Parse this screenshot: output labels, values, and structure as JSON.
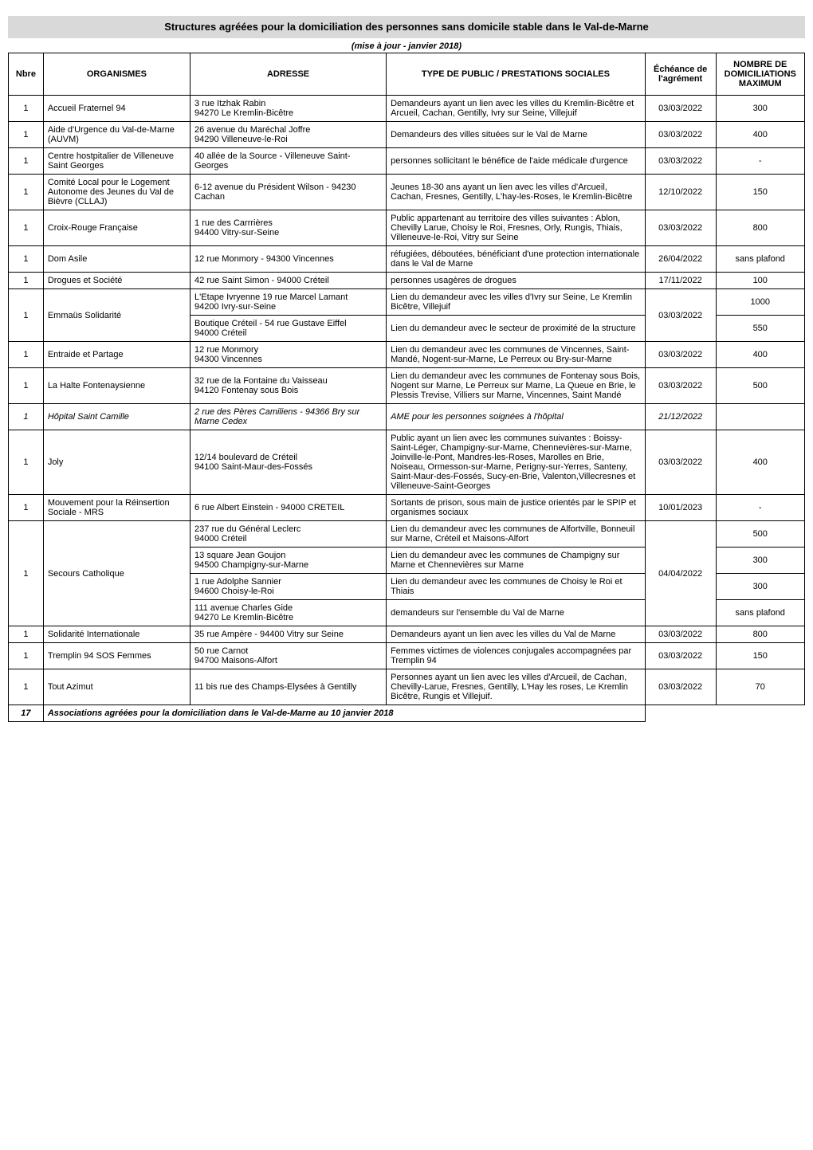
{
  "title": "Structures agréées pour la domiciliation des personnes sans domicile stable dans le Val-de-Marne",
  "subtitle": "(mise à jour - janvier 2018)",
  "headers": {
    "nbre": "Nbre",
    "org": "ORGANISMES",
    "adr": "ADRESSE",
    "type": "TYPE DE PUBLIC / PRESTATIONS SOCIALES",
    "ech": "Échéance de l'agrément",
    "max": "NOMBRE DE DOMICILIATIONS MAXIMUM"
  },
  "rows": [
    {
      "nbre": "1",
      "org": "Accueil Fraternel 94",
      "adr": "3 rue Itzhak Rabin\n94270 Le Kremlin-Bicêtre",
      "type": "Demandeurs ayant un lien avec les villes du Kremlin-Bicêtre et Arcueil, Cachan, Gentilly, Ivry sur Seine, Villejuif",
      "ech": "03/03/2022",
      "max": "300"
    },
    {
      "nbre": "1",
      "org": "Aide d'Urgence du Val-de-Marne (AUVM)",
      "adr": "26 avenue du Maréchal Joffre\n94290 Villeneuve-le-Roi",
      "type": "Demandeurs des villes situées sur le Val de Marne",
      "ech": "03/03/2022",
      "max": "400"
    },
    {
      "nbre": "1",
      "org": "Centre hostpitalier de Villeneuve Saint Georges",
      "adr": "40 allée de la Source  - Villeneuve Saint-Georges",
      "type": "personnes sollicitant le bénéfice de l'aide médicale d'urgence",
      "ech": "03/03/2022",
      "max": "-"
    },
    {
      "nbre": "1",
      "org": "Comité Local pour le Logement Autonome des Jeunes du Val de Bièvre (CLLAJ)",
      "adr": "6-12 avenue du Président Wilson - 94230 Cachan",
      "type": "Jeunes 18-30 ans ayant un lien avec les villes d'Arcueil, Cachan, Fresnes, Gentilly, L'hay-les-Roses, le Kremlin-Bicêtre",
      "ech": "12/10/2022",
      "max": "150"
    },
    {
      "nbre": "1",
      "org": "Croix-Rouge Française",
      "adr": "1 rue des Carrrières\n94400 Vitry-sur-Seine",
      "type": "Public appartenant au territoire des villes suivantes : Ablon, Chevilly Larue, Choisy le Roi, Fresnes, Orly, Rungis, Thiais, Villeneuve-le-Roi, Vitry sur Seine",
      "ech": "03/03/2022",
      "max": "800"
    },
    {
      "nbre": "1",
      "org": "Dom Asile",
      "adr": "12 rue Monmory - 94300 Vincennes",
      "type": "réfugiées, déboutées, bénéficiant d'une protection internationale dans le Val de Marne",
      "ech": "26/04/2022",
      "max": "sans plafond"
    },
    {
      "nbre": "1",
      "org": "Drogues et Société",
      "adr": "42 rue Saint Simon - 94000 Créteil",
      "type": "personnes usagères de drogues",
      "ech": "17/11/2022",
      "max": "100"
    }
  ],
  "emmaus": {
    "nbre": "1",
    "org": "Emmaüs Solidarité",
    "adr1": "L'Etape Ivryenne 19 rue Marcel Lamant\n94200 Ivry-sur-Seine",
    "type1": "Lien du demandeur avec les villes d'Ivry sur Seine, Le Kremlin Bicêtre, Villejuif",
    "max1": "1000",
    "adr2": "Boutique Créteil  - 54 rue Gustave Eiffel\n94000 Créteil",
    "type2": "Lien du demandeur avec le secteur de proximité de la structure",
    "max2": "550",
    "ech": "03/03/2022"
  },
  "rows2": [
    {
      "nbre": "1",
      "org": "Entraide et Partage",
      "adr": "12 rue Monmory\n94300 Vincennes",
      "type": "Lien du demandeur avec les communes de Vincennes, Saint-Mandé, Nogent-sur-Marne, Le Perreux ou Bry-sur-Marne",
      "ech": "03/03/2022",
      "max": "400"
    },
    {
      "nbre": "1",
      "org": "La Halte Fontenaysienne",
      "adr": "32 rue de la Fontaine du Vaisseau\n94120 Fontenay sous Bois",
      "type": "Lien du demandeur avec les communes de Fontenay sous Bois, Nogent sur Marne, Le Perreux sur Marne, La Queue en Brie, le Plessis Trevise, Villiers sur Marne, Vincennes, Saint Mandé",
      "ech": "03/03/2022",
      "max": "500"
    },
    {
      "nbre": "1",
      "italic": true,
      "org": "Hôpital Saint Camille",
      "adr": "2 rue des Pères Camiliens - 94366 Bry sur Marne Cedex",
      "type": "AME pour les personnes soignées à l'hôpital",
      "ech": "21/12/2022",
      "max": ""
    },
    {
      "nbre": "1",
      "org": "Joly",
      "adr": "12/14 boulevard de Créteil\n94100 Saint-Maur-des-Fossés",
      "type": "Public ayant un lien avec les communes suivantes : Boissy-Saint-Léger, Champigny-sur-Marne, Chennevières-sur-Marne, Joinville-le-Pont, Mandres-les-Roses, Marolles en Brie, Noiseau, Ormesson-sur-Marne, Perigny-sur-Yerres, Santeny, Saint-Maur-des-Fossés, Sucy-en-Brie, Valenton,Villecresnes et Villeneuve-Saint-Georges",
      "ech": "03/03/2022",
      "max": "400"
    },
    {
      "nbre": "1",
      "org": "Mouvement pour la Réinsertion Sociale - MRS",
      "adr": "6 rue Albert Einstein - 94000 CRETEIL",
      "type": "Sortants de prison, sous main de justice orientés par le SPIP et organismes sociaux",
      "ech": "10/01/2023",
      "max": "-"
    }
  ],
  "secours": {
    "nbre": "1",
    "org": "Secours Catholique",
    "ech": "04/04/2022",
    "sub": [
      {
        "adr": "237 rue du Général Leclerc\n94000 Créteil",
        "type": "Lien du demandeur avec les communes de Alfortville, Bonneuil sur Marne, Créteil et Maisons-Alfort",
        "max": "500"
      },
      {
        "adr": "13 square Jean Goujon\n94500 Champigny-sur-Marne",
        "type": "Lien du demandeur avec les communes de Champigny sur Marne et Chennevières sur Marne",
        "max": "300"
      },
      {
        "adr": "1 rue Adolphe Sannier\n94600 Choisy-le-Roi",
        "type": "Lien du demandeur avec les communes de Choisy le Roi et Thiais",
        "max": "300"
      },
      {
        "adr": "111 avenue Charles Gide\n94270 Le Kremlin-Bicêtre",
        "type": "demandeurs sur l'ensemble du Val de Marne",
        "max": "sans plafond"
      }
    ]
  },
  "rows3": [
    {
      "nbre": "1",
      "org": "Solidarité Internationale",
      "adr": "35 rue Ampère - 94400 Vitry sur Seine",
      "type": "Demandeurs ayant un lien avec les villes du Val de Marne",
      "ech": "03/03/2022",
      "max": "800"
    },
    {
      "nbre": "1",
      "org": "Tremplin 94 SOS Femmes",
      "adr": "50 rue Carnot\n94700 Maisons-Alfort",
      "type": "Femmes victimes de violences conjugales accompagnées par Tremplin 94",
      "ech": "03/03/2022",
      "max": "150"
    },
    {
      "nbre": "1",
      "org": "Tout Azimut",
      "adr": "11 bis rue des Champs-Elysées à Gentilly",
      "type": "Personnes ayant un lien avec les villes d'Arcueil, de Cachan, Chevilly-Larue, Fresnes, Gentilly, L'Hay les roses, Le Kremlin Bicêtre, Rungis et Villejuif.",
      "ech": "03/03/2022",
      "max": "70"
    }
  ],
  "footer": {
    "nbre": "17",
    "text": "Associations agréées pour la domiciliation dans le Val-de-Marne au 10 janvier 2018"
  },
  "style": {
    "title_bg": "#d9d9d9",
    "border_color": "#000000",
    "font_family": "Arial, Helvetica, sans-serif",
    "body_fontsize": 11,
    "title_fontsize": 13
  }
}
